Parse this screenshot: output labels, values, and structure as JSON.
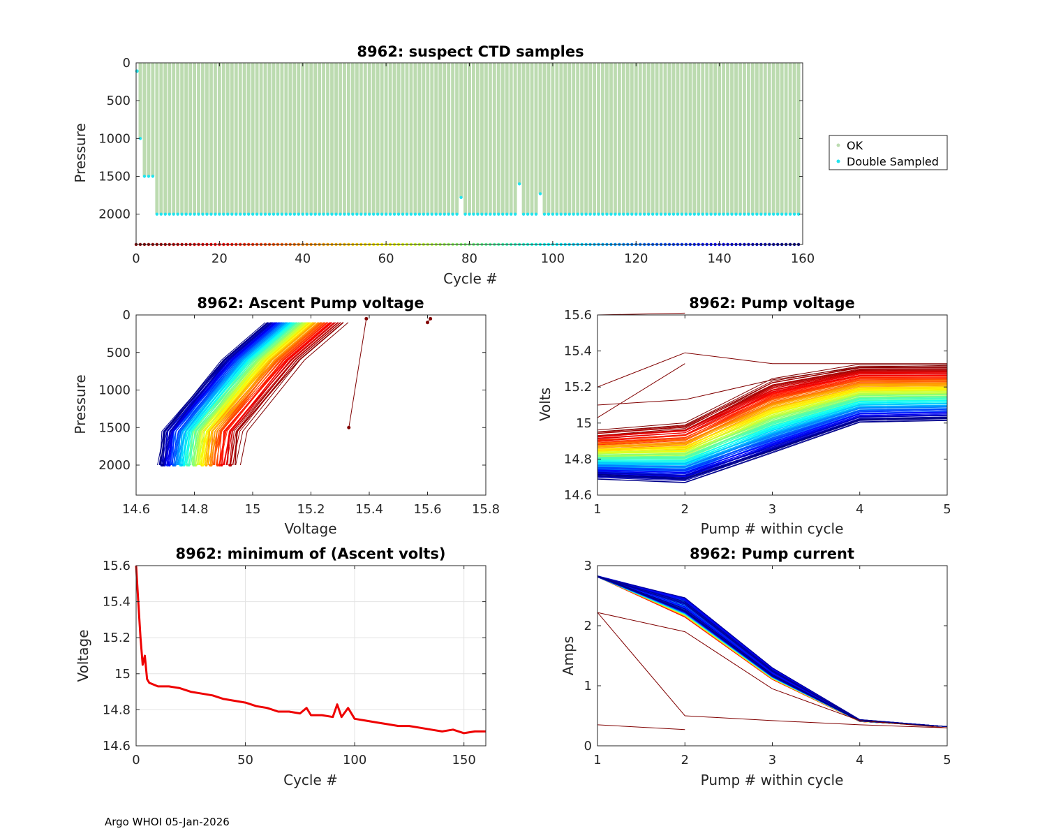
{
  "footer": "Argo WHOI 05-Jan-2026",
  "chart_data": [
    {
      "id": "ctd",
      "type": "scatter",
      "title": "8962: suspect CTD samples",
      "xlabel": "Cycle #",
      "ylabel": "Pressure",
      "xlim": [
        0,
        160
      ],
      "ylim": [
        2400,
        0
      ],
      "xticks": [
        0,
        20,
        40,
        60,
        80,
        100,
        120,
        140,
        160
      ],
      "yticks": [
        0,
        500,
        1000,
        1500,
        2000
      ],
      "xtick_labels": [
        "0",
        "20",
        "40",
        "60",
        "80",
        "100",
        "120",
        "140",
        "160"
      ],
      "ytick_labels": [
        "0",
        "500",
        "1000",
        "1500",
        "2000"
      ],
      "n_cycles": 159,
      "profile_max_pressure": 2000,
      "shallow_profiles": [
        {
          "cycle": 1,
          "max_pressure": 1000
        },
        {
          "cycle": 2,
          "max_pressure": 1500
        },
        {
          "cycle": 3,
          "max_pressure": 1500
        },
        {
          "cycle": 4,
          "max_pressure": 1500
        },
        {
          "cycle": 78,
          "max_pressure": 1780
        },
        {
          "cycle": 92,
          "max_pressure": 1600
        },
        {
          "cycle": 97,
          "max_pressure": 1730
        }
      ],
      "cycle_marker_pressure": 2400,
      "legend": {
        "position": "outside-right",
        "entries": [
          {
            "label": "OK",
            "color": "#bcdbb0"
          },
          {
            "label": "Double Sampled",
            "color": "#22e4ee"
          }
        ]
      }
    },
    {
      "id": "ascent",
      "type": "line",
      "title": "8962: Ascent Pump voltage",
      "xlabel": "Voltage",
      "ylabel": "Pressure",
      "xlim": [
        14.6,
        15.8
      ],
      "ylim": [
        2400,
        0
      ],
      "xticks": [
        14.6,
        14.8,
        15.0,
        15.2,
        15.4,
        15.6,
        15.8
      ],
      "yticks": [
        0,
        500,
        1000,
        1500,
        2000
      ],
      "xtick_labels": [
        "14.6",
        "14.8",
        "15",
        "15.2",
        "15.4",
        "15.6",
        "15.8"
      ],
      "ytick_labels": [
        "0",
        "500",
        "1000",
        "1500",
        "2000"
      ],
      "profile_pressures": [
        2000,
        1550,
        600,
        100
      ],
      "min_voltage_first_cycle": 14.95,
      "min_voltage_last_cycle": 14.68,
      "outliers": [
        {
          "voltage": [
            15.39,
            15.33
          ],
          "pressure": [
            50,
            1500
          ]
        },
        {
          "voltage": [
            15.61,
            15.6
          ],
          "pressure": [
            50,
            100
          ]
        }
      ]
    },
    {
      "id": "pumpv",
      "type": "line",
      "title": "8962: Pump voltage",
      "xlabel": "Pump # within cycle",
      "ylabel": "Volts",
      "xlim": [
        1,
        5
      ],
      "ylim": [
        14.6,
        15.6
      ],
      "xticks": [
        1,
        2,
        3,
        4,
        5
      ],
      "yticks": [
        14.6,
        14.8,
        15.0,
        15.2,
        15.4,
        15.6
      ],
      "xtick_labels": [
        "1",
        "2",
        "3",
        "4",
        "5"
      ],
      "ytick_labels": [
        "14.6",
        "14.8",
        "15",
        "15.2",
        "15.4",
        "15.6"
      ],
      "first_cycle_profile": [
        14.95,
        14.99,
        15.24,
        15.32,
        15.32
      ],
      "last_cycle_profile": [
        14.7,
        14.68,
        14.84,
        15.01,
        15.02
      ]
    },
    {
      "id": "minv",
      "type": "line",
      "title": "8962: minimum of (Ascent volts)",
      "xlabel": "Cycle #",
      "ylabel": "Voltage",
      "xlim": [
        0,
        160
      ],
      "ylim": [
        14.6,
        15.6
      ],
      "xticks": [
        0,
        50,
        100,
        150
      ],
      "yticks": [
        14.6,
        14.8,
        15.0,
        15.2,
        15.4,
        15.6
      ],
      "xtick_labels": [
        "0",
        "50",
        "100",
        "150"
      ],
      "ytick_labels": [
        "14.6",
        "14.8",
        "15",
        "15.2",
        "15.4",
        "15.6"
      ],
      "color": "#ee0000",
      "x": [
        0,
        1,
        2,
        3,
        4,
        5,
        6,
        10,
        15,
        20,
        25,
        30,
        35,
        40,
        45,
        50,
        55,
        60,
        65,
        70,
        75,
        78,
        80,
        85,
        90,
        92,
        94,
        97,
        100,
        105,
        110,
        115,
        120,
        125,
        130,
        135,
        140,
        145,
        150,
        155,
        160
      ],
      "y": [
        15.6,
        15.4,
        15.2,
        15.05,
        15.1,
        14.97,
        14.95,
        14.93,
        14.93,
        14.92,
        14.9,
        14.89,
        14.88,
        14.86,
        14.85,
        14.84,
        14.82,
        14.81,
        14.79,
        14.79,
        14.78,
        14.81,
        14.77,
        14.77,
        14.76,
        14.83,
        14.76,
        14.81,
        14.75,
        14.74,
        14.73,
        14.72,
        14.71,
        14.71,
        14.7,
        14.69,
        14.68,
        14.69,
        14.67,
        14.68,
        14.68
      ]
    },
    {
      "id": "pumpi",
      "type": "line",
      "title": "8962: Pump current",
      "xlabel": "Pump # within cycle",
      "ylabel": "Amps",
      "xlim": [
        1,
        5
      ],
      "ylim": [
        0,
        3
      ],
      "xticks": [
        1,
        2,
        3,
        4,
        5
      ],
      "yticks": [
        0,
        1,
        2,
        3
      ],
      "xtick_labels": [
        "1",
        "2",
        "3",
        "4",
        "5"
      ],
      "ytick_labels": [
        "0",
        "1",
        "2",
        "3"
      ],
      "typical_profile": [
        2.82,
        2.3,
        1.2,
        0.42,
        0.32
      ],
      "outlier_profiles": [
        [
          2.22,
          0.5,
          0.42,
          0.35,
          0.3
        ],
        [
          2.22,
          1.9,
          0.95,
          0.42,
          0.3
        ],
        [
          0.35,
          0.27
        ]
      ]
    }
  ]
}
